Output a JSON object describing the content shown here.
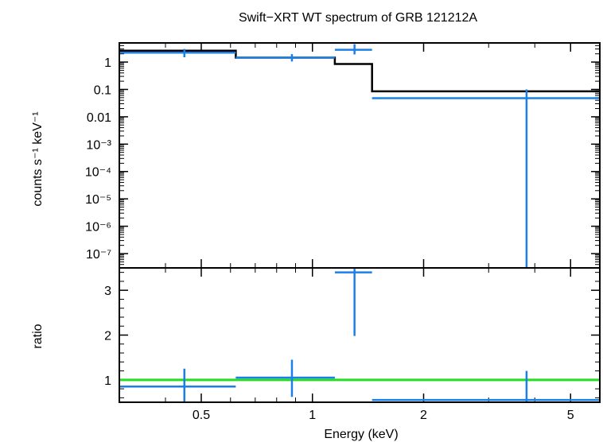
{
  "chart_data": [
    {
      "type": "step-errorbar",
      "panel": "spectrum",
      "title": "Swift−XRT WT spectrum of GRB 121212A",
      "ylabel": "counts s⁻¹ keV⁻¹",
      "xlabel": "",
      "xscale": "log",
      "yscale": "log",
      "xlim": [
        0.3,
        6.0
      ],
      "ylim": [
        3e-08,
        5
      ],
      "yticks": [
        {
          "value": 1,
          "label": "1"
        },
        {
          "value": 0.1,
          "label": "0.1"
        },
        {
          "value": 0.01,
          "label": "0.01"
        },
        {
          "value": 0.001,
          "label": "10⁻³"
        },
        {
          "value": 0.0001,
          "label": "10⁻⁴"
        },
        {
          "value": 1e-05,
          "label": "10⁻⁵"
        },
        {
          "value": 1e-06,
          "label": "10⁻⁶"
        },
        {
          "value": 1e-07,
          "label": "10⁻⁷"
        }
      ],
      "data_color": "#1a80e8",
      "model_color": "#000000",
      "data": [
        {
          "x": 0.45,
          "xlo": 0.3,
          "xhi": 0.62,
          "y": 2.2,
          "ylo": 1.5,
          "yhi": 3.0
        },
        {
          "x": 0.88,
          "xlo": 0.62,
          "xhi": 1.15,
          "y": 1.45,
          "ylo": 1.05,
          "yhi": 1.95
        },
        {
          "x": 1.3,
          "xlo": 1.15,
          "xhi": 1.45,
          "y": 2.8,
          "ylo": 1.9,
          "yhi": 4.5
        },
        {
          "x": 3.8,
          "xlo": 1.45,
          "xhi": 6.0,
          "y": 0.048,
          "ylo": 3e-08,
          "yhi": 0.1
        }
      ],
      "model": [
        {
          "xlo": 0.3,
          "xhi": 0.62,
          "y": 2.6
        },
        {
          "xlo": 0.62,
          "xhi": 1.15,
          "y": 1.45
        },
        {
          "xlo": 1.15,
          "xhi": 1.45,
          "y": 0.85
        },
        {
          "xlo": 1.45,
          "xhi": 6.0,
          "y": 0.085
        }
      ]
    },
    {
      "type": "errorbar",
      "panel": "ratio",
      "title": "",
      "xlabel": "Energy (keV)",
      "ylabel": "ratio",
      "xscale": "log",
      "xlim": [
        0.3,
        6.0
      ],
      "ylim": [
        0.5,
        3.5
      ],
      "xticks": [
        {
          "value": 0.5,
          "label": "0.5"
        },
        {
          "value": 1,
          "label": "1"
        },
        {
          "value": 2,
          "label": "2"
        },
        {
          "value": 5,
          "label": "5"
        }
      ],
      "yticks": [
        {
          "value": 1,
          "label": "1"
        },
        {
          "value": 2,
          "label": "2"
        },
        {
          "value": 3,
          "label": "3"
        }
      ],
      "reference_line": {
        "y": 1,
        "color": "#22dd22"
      },
      "data_color": "#1a80e8",
      "data": [
        {
          "x": 0.45,
          "xlo": 0.3,
          "xhi": 0.62,
          "y": 0.85,
          "ylo": 0.5,
          "yhi": 1.25
        },
        {
          "x": 0.88,
          "xlo": 0.62,
          "xhi": 1.15,
          "y": 1.05,
          "ylo": 0.62,
          "yhi": 1.45
        },
        {
          "x": 1.3,
          "xlo": 1.15,
          "xhi": 1.45,
          "y": 3.4,
          "ylo": 1.98,
          "yhi": 3.48
        },
        {
          "x": 3.8,
          "xlo": 1.45,
          "xhi": 6.0,
          "y": 0.55,
          "ylo": 0.5,
          "yhi": 1.2
        }
      ]
    }
  ]
}
